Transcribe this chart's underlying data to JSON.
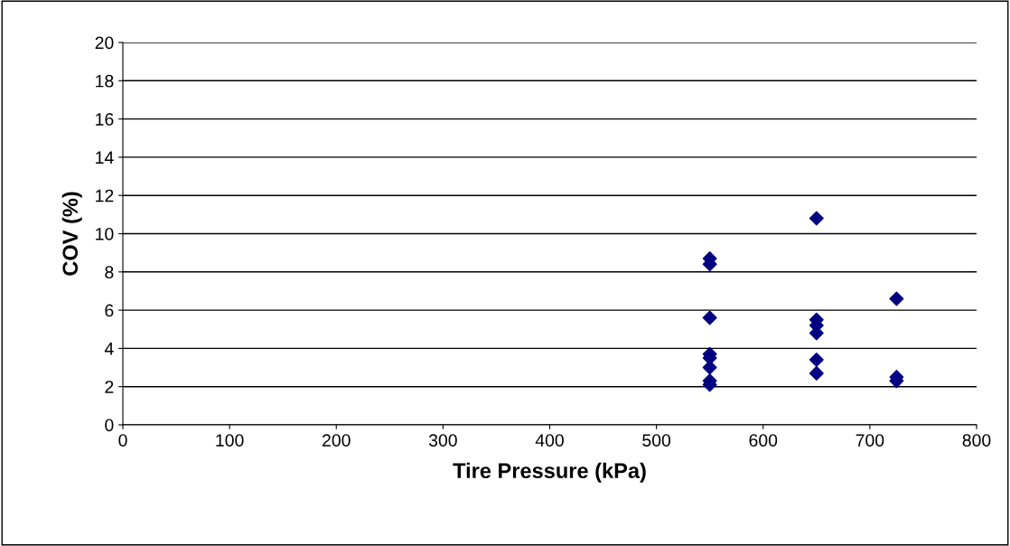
{
  "chart_data": {
    "type": "scatter",
    "xlabel": "Tire Pressure (kPa)",
    "ylabel": "COV (%)",
    "x": [
      550,
      550,
      550,
      550,
      550,
      550,
      550,
      550,
      650,
      650,
      650,
      650,
      650,
      650,
      725,
      725,
      725
    ],
    "series": [
      {
        "color": "#000080",
        "values": [
          8.7,
          8.4,
          5.6,
          3.7,
          3.5,
          3.0,
          2.3,
          2.1,
          10.8,
          5.5,
          5.2,
          4.8,
          3.4,
          2.7,
          6.6,
          2.5,
          2.3
        ]
      }
    ],
    "xlim": [
      0,
      800
    ],
    "xticks": [
      0,
      100,
      200,
      300,
      400,
      500,
      600,
      700,
      800
    ],
    "ylim": [
      0,
      20
    ],
    "yticks": [
      0,
      2,
      4,
      6,
      8,
      10,
      12,
      14,
      16,
      18,
      20
    ],
    "grid": "y",
    "marker": "diamond",
    "legend": false
  }
}
